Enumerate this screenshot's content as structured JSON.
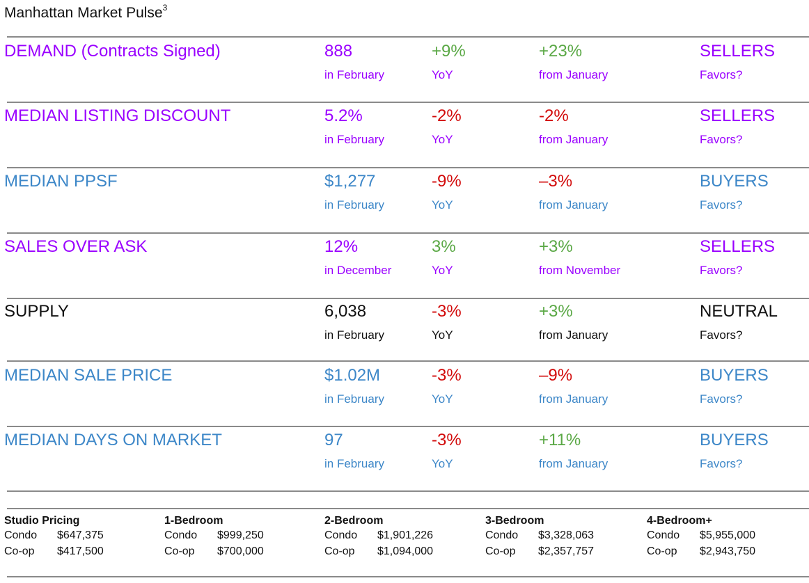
{
  "title": "Manhattan Market Pulse",
  "title_superscript": "3",
  "colors": {
    "sellers": "#9a00ff",
    "buyers": "#3d87c8",
    "neutral": "#111111",
    "positive": "#5aa845",
    "negative": "#d20a0a"
  },
  "metrics": [
    {
      "label": "DEMAND (Contracts Signed)",
      "favors": "SELLERS",
      "value": "888",
      "period": "in February",
      "yoy": "+9%",
      "yoy_dir": "positive",
      "yoy_label": "YoY",
      "change": "+23%",
      "change_dir": "positive",
      "change_label": "from January",
      "favors_label": "Favors?"
    },
    {
      "label": "MEDIAN LISTING DISCOUNT",
      "favors": "SELLERS",
      "value": "5.2%",
      "period": "in February",
      "yoy": "-2%",
      "yoy_dir": "negative",
      "yoy_label": "YoY",
      "change": "-2%",
      "change_dir": "negative",
      "change_label": "from January",
      "favors_label": "Favors?"
    },
    {
      "label": "MEDIAN PPSF",
      "favors": "BUYERS",
      "value": "$1,277",
      "period": "in February",
      "yoy": "-9%",
      "yoy_dir": "negative",
      "yoy_label": "YoY",
      "change": "–3%",
      "change_dir": "negative",
      "change_label": "from January",
      "favors_label": "Favors?"
    },
    {
      "label": "SALES OVER ASK",
      "favors": "SELLERS",
      "value": "12%",
      "period": "in December",
      "yoy": "3%",
      "yoy_dir": "positive",
      "yoy_label": "YoY",
      "change": "+3%",
      "change_dir": "positive",
      "change_label": "from November",
      "favors_label": "Favors?"
    },
    {
      "label": "SUPPLY",
      "favors": "NEUTRAL",
      "value": "6,038",
      "period": "in February",
      "yoy": "-3%",
      "yoy_dir": "negative",
      "yoy_label": "YoY",
      "change": "+3%",
      "change_dir": "positive",
      "change_label": "from January",
      "favors_label": "Favors?"
    },
    {
      "label": "MEDIAN SALE PRICE",
      "favors": "BUYERS",
      "value": "$1.02M",
      "period": "in February",
      "yoy": "-3%",
      "yoy_dir": "negative",
      "yoy_label": "YoY",
      "change": "–9%",
      "change_dir": "negative",
      "change_label": "from January",
      "favors_label": "Favors?"
    },
    {
      "label": "MEDIAN DAYS ON MARKET",
      "favors": "BUYERS",
      "value": "97",
      "period": "in February",
      "yoy": "-3%",
      "yoy_dir": "negative",
      "yoy_label": "YoY",
      "change": "+11%",
      "change_dir": "positive",
      "change_label": "from January",
      "favors_label": "Favors?"
    }
  ],
  "pricing": [
    {
      "heading": "Studio Pricing",
      "rows": [
        {
          "type": "Condo",
          "price": "$647,375"
        },
        {
          "type": "Co-op",
          "price": "$417,500"
        }
      ]
    },
    {
      "heading": "1-Bedroom",
      "rows": [
        {
          "type": "Condo",
          "price": "$999,250"
        },
        {
          "type": "Co-op",
          "price": "$700,000"
        }
      ]
    },
    {
      "heading": "2-Bedroom",
      "rows": [
        {
          "type": "Condo",
          "price": "$1,901,226"
        },
        {
          "type": "Co-op",
          "price": "$1,094,000"
        }
      ]
    },
    {
      "heading": "3-Bedroom",
      "rows": [
        {
          "type": "Condo",
          "price": "$3,328,063"
        },
        {
          "type": "Co-op",
          "price": "$2,357,757"
        }
      ]
    },
    {
      "heading": "4-Bedroom+",
      "rows": [
        {
          "type": "Condo",
          "price": "$5,955,000"
        },
        {
          "type": "Co-op",
          "price": "$2,943,750"
        }
      ]
    }
  ]
}
